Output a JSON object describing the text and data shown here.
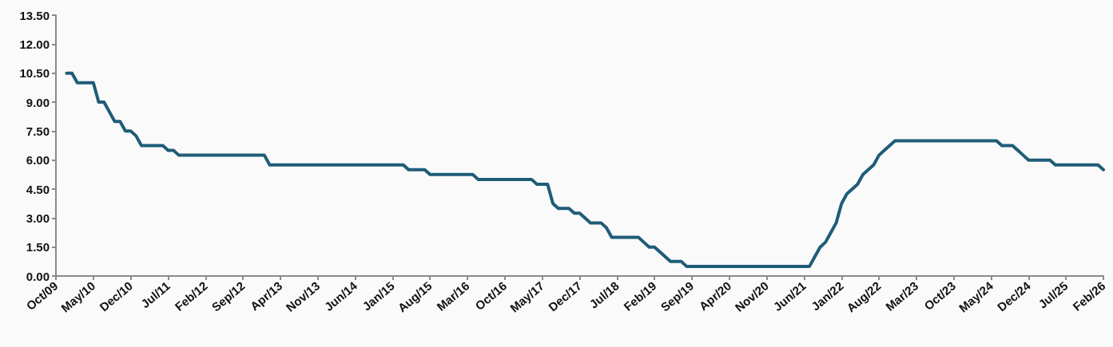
{
  "chart_data": {
    "type": "line",
    "marker": "none",
    "line_style": "solid",
    "categories": [
      "Oct/09",
      null,
      null,
      null,
      null,
      null,
      null,
      "May/10",
      null,
      null,
      null,
      null,
      null,
      null,
      "Dec/10",
      null,
      null,
      null,
      null,
      null,
      null,
      "Jul/11",
      null,
      null,
      null,
      null,
      null,
      null,
      "Feb/12",
      null,
      null,
      null,
      null,
      null,
      null,
      "Sep/12",
      null,
      null,
      null,
      null,
      null,
      null,
      "Apr/13",
      null,
      null,
      null,
      null,
      null,
      null,
      "Nov/13",
      null,
      null,
      null,
      null,
      null,
      null,
      "Jun/14",
      null,
      null,
      null,
      null,
      null,
      null,
      "Jan/15",
      null,
      null,
      null,
      null,
      null,
      null,
      "Aug/15",
      null,
      null,
      null,
      null,
      null,
      null,
      "Mar/16",
      null,
      null,
      null,
      null,
      null,
      null,
      "Oct/16",
      null,
      null,
      null,
      null,
      null,
      null,
      "May/17",
      null,
      null,
      null,
      null,
      null,
      null,
      "Dec/17",
      null,
      null,
      null,
      null,
      null,
      null,
      "Jul/18",
      null,
      null,
      null,
      null,
      null,
      null,
      "Feb/19",
      null,
      null,
      null,
      null,
      null,
      null,
      "Sep/19",
      null,
      null,
      null,
      null,
      null,
      null,
      "Apr/20",
      null,
      null,
      null,
      null,
      null,
      null,
      "Nov/20",
      null,
      null,
      null,
      null,
      null,
      null,
      "Jun/21",
      null,
      null,
      null,
      null,
      null,
      null,
      "Jan/22",
      null,
      null,
      null,
      null,
      null,
      null,
      "Aug/22",
      null,
      null,
      null,
      null,
      null,
      null,
      "Mar/23",
      null,
      null,
      null,
      null,
      null,
      null,
      "Oct/23",
      null,
      null,
      null,
      null,
      null,
      null,
      "May/24",
      null,
      null,
      null,
      null,
      null,
      null,
      "Dec/24",
      null,
      null,
      null,
      null,
      null,
      null,
      "Jul/25",
      null,
      null,
      null,
      null,
      null,
      null,
      "Feb/26"
    ],
    "series": [
      {
        "color": "#1f5c78",
        "values": [
          null,
          null,
          10.5,
          10.5,
          10.0,
          10.0,
          10.0,
          10.0,
          9.0,
          9.0,
          8.5,
          8.0,
          8.0,
          7.5,
          7.5,
          7.25,
          6.75,
          6.75,
          6.75,
          6.75,
          6.75,
          6.5,
          6.5,
          6.25,
          6.25,
          6.25,
          6.25,
          6.25,
          6.25,
          6.25,
          6.25,
          6.25,
          6.25,
          6.25,
          6.25,
          6.25,
          6.25,
          6.25,
          6.25,
          6.25,
          5.75,
          5.75,
          5.75,
          5.75,
          5.75,
          5.75,
          5.75,
          5.75,
          5.75,
          5.75,
          5.75,
          5.75,
          5.75,
          5.75,
          5.75,
          5.75,
          5.75,
          5.75,
          5.75,
          5.75,
          5.75,
          5.75,
          5.75,
          5.75,
          5.75,
          5.75,
          5.5,
          5.5,
          5.5,
          5.5,
          5.25,
          5.25,
          5.25,
          5.25,
          5.25,
          5.25,
          5.25,
          5.25,
          5.25,
          5.0,
          5.0,
          5.0,
          5.0,
          5.0,
          5.0,
          5.0,
          5.0,
          5.0,
          5.0,
          5.0,
          4.75,
          4.75,
          4.75,
          3.75,
          3.5,
          3.5,
          3.5,
          3.25,
          3.25,
          3.0,
          2.75,
          2.75,
          2.75,
          2.5,
          2.0,
          2.0,
          2.0,
          2.0,
          2.0,
          2.0,
          1.75,
          1.5,
          1.5,
          1.25,
          1.0,
          0.75,
          0.75,
          0.75,
          0.5,
          0.5,
          0.5,
          0.5,
          0.5,
          0.5,
          0.5,
          0.5,
          0.5,
          0.5,
          0.5,
          0.5,
          0.5,
          0.5,
          0.5,
          0.5,
          0.5,
          0.5,
          0.5,
          0.5,
          0.5,
          0.5,
          0.5,
          0.5,
          1.0,
          1.5,
          1.75,
          2.25,
          2.75,
          3.75,
          4.25,
          4.5,
          4.75,
          5.25,
          5.5,
          5.75,
          6.25,
          6.5,
          6.75,
          7.0,
          7.0,
          7.0,
          7.0,
          7.0,
          7.0,
          7.0,
          7.0,
          7.0,
          7.0,
          7.0,
          7.0,
          7.0,
          7.0,
          7.0,
          7.0,
          7.0,
          7.0,
          7.0,
          7.0,
          6.75,
          6.75,
          6.75,
          6.5,
          6.25,
          6.0,
          6.0,
          6.0,
          6.0,
          6.0,
          5.75,
          5.75,
          5.75,
          5.75,
          5.75,
          5.75,
          5.75,
          5.75,
          5.75,
          5.5
        ]
      }
    ],
    "ylim": [
      0,
      13.5
    ],
    "yticks": [
      {
        "value": 0,
        "label": "0.00"
      },
      {
        "value": 1.5,
        "label": "1.50"
      },
      {
        "value": 3,
        "label": "3.00"
      },
      {
        "value": 4.5,
        "label": "4.50"
      },
      {
        "value": 6,
        "label": "6.00"
      },
      {
        "value": 7.5,
        "label": "7.50"
      },
      {
        "value": 9,
        "label": "9.00"
      },
      {
        "value": 10.5,
        "label": "10.50"
      },
      {
        "value": 12,
        "label": "12.00"
      },
      {
        "value": 13.5,
        "label": "13.50"
      }
    ]
  }
}
